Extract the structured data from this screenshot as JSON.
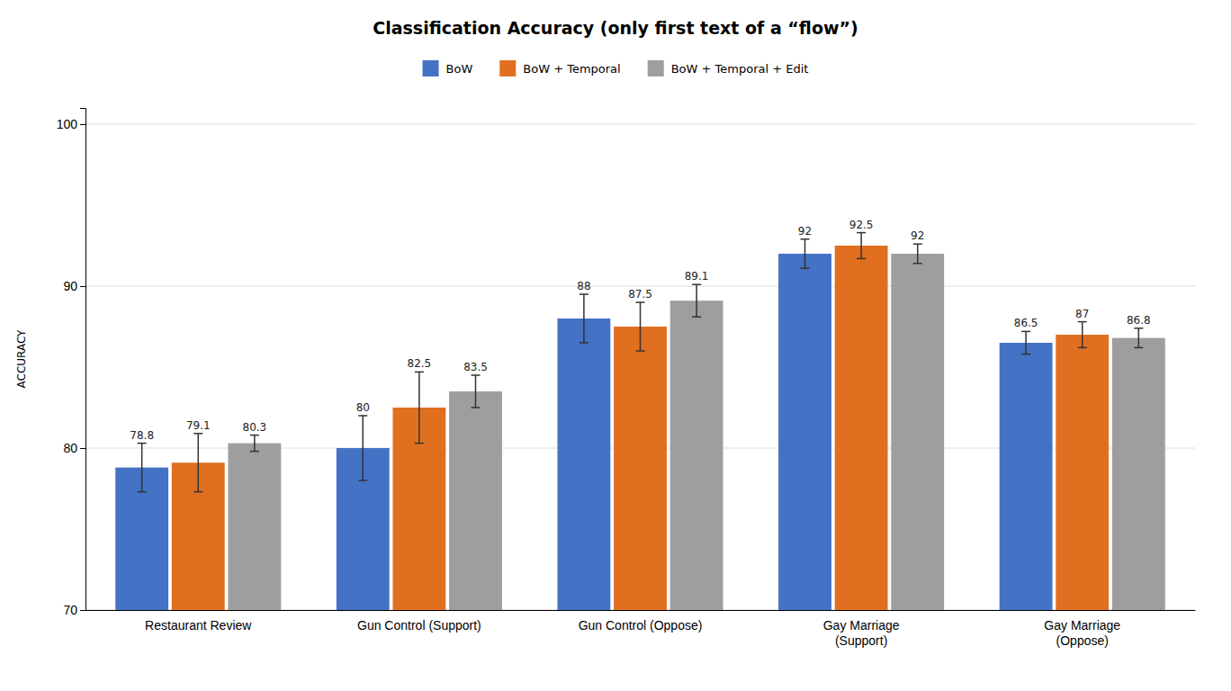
{
  "chart_data": {
    "type": "bar",
    "title": "Classification Accuracy (only first text of a “flow”)",
    "ylabel": "ACCURACY",
    "categories": [
      "Restaurant Review",
      "Gun Control (Support)",
      "Gun Control (Oppose)",
      "Gay Marriage\n(Support)",
      "Gay Marriage\n(Oppose)"
    ],
    "series": [
      {
        "name": "BoW",
        "color": "#4472C4",
        "values": [
          78.8,
          80.0,
          88.0,
          92.0,
          86.5
        ],
        "errors": [
          1.5,
          2.0,
          1.5,
          0.9,
          0.7
        ]
      },
      {
        "name": "BoW + Temporal",
        "color": "#E07020",
        "values": [
          79.1,
          82.5,
          87.5,
          92.5,
          87.0
        ],
        "errors": [
          1.8,
          2.2,
          1.5,
          0.8,
          0.8
        ]
      },
      {
        "name": "BoW + Temporal + Edit",
        "color": "#9E9E9E",
        "values": [
          80.3,
          83.5,
          89.1,
          92.0,
          86.8
        ],
        "errors": [
          0.5,
          1.0,
          1.0,
          0.6,
          0.6
        ]
      }
    ],
    "ylim": [
      70,
      101
    ],
    "yticks": [
      70,
      80,
      90,
      100
    ],
    "grid": true,
    "legend": "top",
    "data_labels": true
  }
}
